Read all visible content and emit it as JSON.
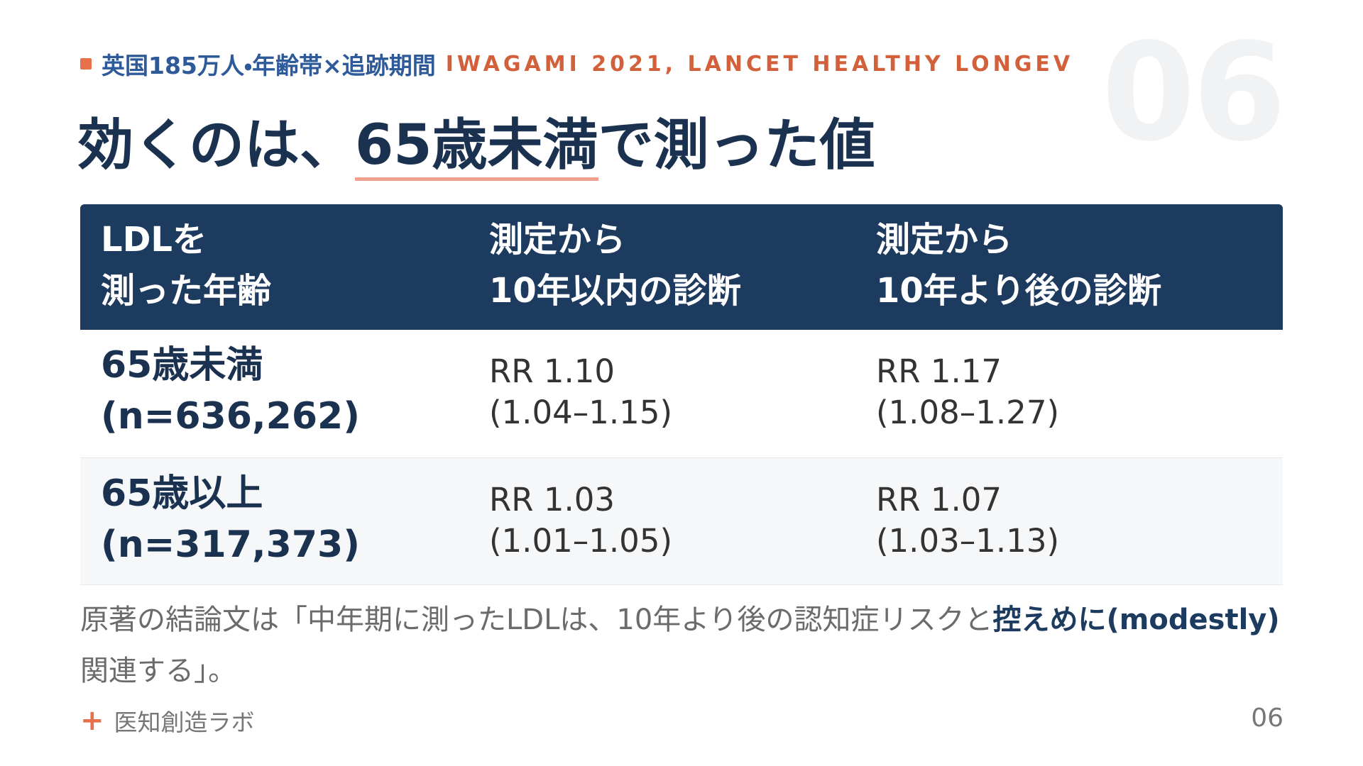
{
  "watermark": "06",
  "header": {
    "tag": "英国185万人・年齢帯×追跡期間",
    "source": "IWAGAMI 2021, LANCET HEALTHY LONGEV"
  },
  "title": {
    "before": "効くのは、",
    "highlight": "65歳未満",
    "after": "で測った値"
  },
  "table": {
    "header": [
      [
        "LDLを",
        "測った年齢"
      ],
      [
        "測定から",
        "10年以内の診断"
      ],
      [
        "測定から",
        "10年より後の診断"
      ]
    ],
    "rows": [
      [
        [
          "65歳未満",
          "(n=636,262)"
        ],
        [
          "RR 1.10",
          "(1.04–1.15)"
        ],
        [
          "RR 1.17",
          "(1.08–1.27)"
        ]
      ],
      [
        [
          "65歳以上",
          "(n=317,373)"
        ],
        [
          "RR 1.03",
          "(1.01–1.05)"
        ],
        [
          "RR 1.07",
          "(1.03–1.13)"
        ]
      ]
    ]
  },
  "note": {
    "before": "原著の結論文は「中年期に測ったLDLは、10年より後の認知症リスクと",
    "emphasis": "控えめに(modestly)",
    "after": "関連する」。"
  },
  "footer": {
    "brand": "医知創造ラボ",
    "page": "06"
  }
}
